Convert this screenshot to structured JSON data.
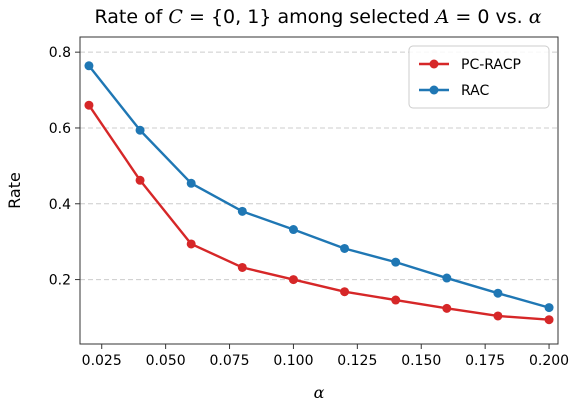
{
  "chart_data": {
    "type": "line",
    "title": {
      "prefix": "Rate of ",
      "var_c": "C",
      "set_part": " = {0, 1} among selected ",
      "var_a": "A",
      "eq_part": " = 0 vs. ",
      "var_alpha": "α"
    },
    "xlabel": "α",
    "ylabel": "Rate",
    "x": [
      0.02,
      0.04,
      0.06,
      0.08,
      0.1,
      0.12,
      0.14,
      0.16,
      0.18,
      0.2
    ],
    "xlim": [
      0.0165,
      0.2035
    ],
    "ylim": [
      0.03,
      0.84
    ],
    "xticks": [
      0.025,
      0.05,
      0.075,
      0.1,
      0.125,
      0.15,
      0.175,
      0.2
    ],
    "xtick_labels": [
      "0.025",
      "0.050",
      "0.075",
      "0.100",
      "0.125",
      "0.150",
      "0.175",
      "0.200"
    ],
    "yticks": [
      0.2,
      0.4,
      0.6,
      0.8
    ],
    "ytick_labels": [
      "0.2",
      "0.4",
      "0.6",
      "0.8"
    ],
    "grid": "horizontal dashed",
    "legend_position": "top-right",
    "series": [
      {
        "name": "PC-RACP",
        "color": "#d62728",
        "values": [
          0.66,
          0.462,
          0.294,
          0.232,
          0.2,
          0.168,
          0.146,
          0.124,
          0.104,
          0.094
        ]
      },
      {
        "name": "RAC",
        "color": "#1f77b4",
        "values": [
          0.764,
          0.594,
          0.454,
          0.38,
          0.332,
          0.282,
          0.246,
          0.204,
          0.164,
          0.126
        ]
      }
    ]
  }
}
